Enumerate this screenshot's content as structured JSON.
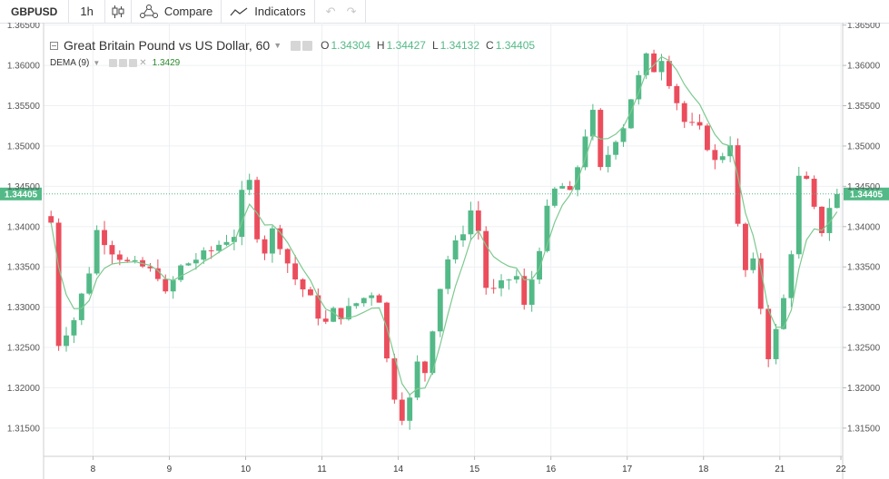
{
  "toolbar": {
    "symbol": "GBPUSD",
    "interval": "1h",
    "compare_label": "Compare",
    "indicators_label": "Indicators",
    "icons": [
      "candles-icon",
      "compare-icon",
      "indicators-icon",
      "undo-icon",
      "redo-icon"
    ]
  },
  "legend": {
    "title": "Great Britain Pound vs US Dollar, 60",
    "o_label": "O",
    "o": "1.34304",
    "h_label": "H",
    "h": "1.34427",
    "l_label": "L",
    "l": "1.34132",
    "c_label": "C",
    "c": "1.34405",
    "indicator": "DEMA (9)",
    "indicator_value": "1.3429"
  },
  "colors": {
    "up": "#53b987",
    "down": "#eb4d5c",
    "dema": "#7dc98f",
    "last": "#53b987"
  },
  "chart_data": {
    "type": "candlestick",
    "symbol": "GBPUSD",
    "interval": "60",
    "x_ticks": [
      "8",
      "9",
      "10",
      "11",
      "14",
      "15",
      "16",
      "17",
      "18",
      "21",
      "22"
    ],
    "y_ticks_left": [
      "1.36500",
      "1.36000",
      "1.35500",
      "1.35000",
      "1.34500",
      "1.34000",
      "1.33500",
      "1.33000",
      "1.32500",
      "1.32000",
      "1.31500"
    ],
    "y_ticks_right": [
      "1.36500",
      "1.36000",
      "1.35500",
      "1.35000",
      "1.34500",
      "1.34000",
      "1.33500",
      "1.33000",
      "1.32500",
      "1.32000",
      "1.31500"
    ],
    "ylim": [
      1.3115,
      1.3653
    ],
    "last_price": "1.34405",
    "last_price_value": 1.34405,
    "grid": true,
    "series": [
      {
        "name": "GBPUSD",
        "close_path": [
          [
            0,
            1.3405
          ],
          [
            1,
            1.3255
          ],
          [
            3,
            1.3285
          ],
          [
            5,
            1.3345
          ],
          [
            6,
            1.3395
          ],
          [
            8,
            1.337
          ],
          [
            10,
            1.3355
          ],
          [
            12,
            1.335
          ],
          [
            14,
            1.334
          ],
          [
            15,
            1.3315
          ],
          [
            17,
            1.335
          ],
          [
            19,
            1.336
          ],
          [
            21,
            1.337
          ],
          [
            22,
            1.3378
          ],
          [
            24,
            1.339
          ],
          [
            25,
            1.344
          ],
          [
            26,
            1.3455
          ],
          [
            27,
            1.339
          ],
          [
            28,
            1.337
          ],
          [
            29,
            1.3395
          ],
          [
            30,
            1.3378
          ],
          [
            31,
            1.3355
          ],
          [
            32,
            1.3335
          ],
          [
            34,
            1.331
          ],
          [
            35,
            1.329
          ],
          [
            36,
            1.328
          ],
          [
            37,
            1.3295
          ],
          [
            38,
            1.329
          ],
          [
            40,
            1.3305
          ],
          [
            42,
            1.3318
          ],
          [
            43,
            1.331
          ],
          [
            44,
            1.3235
          ],
          [
            45,
            1.319
          ],
          [
            46,
            1.3165
          ],
          [
            47,
            1.3185
          ],
          [
            48,
            1.323
          ],
          [
            49,
            1.322
          ],
          [
            50,
            1.3275
          ],
          [
            51,
            1.3325
          ],
          [
            52,
            1.336
          ],
          [
            53,
            1.3378
          ],
          [
            54,
            1.3395
          ],
          [
            55,
            1.342
          ],
          [
            56,
            1.3395
          ],
          [
            57,
            1.3325
          ],
          [
            58,
            1.332
          ],
          [
            60,
            1.3335
          ],
          [
            61,
            1.3338
          ],
          [
            62,
            1.33
          ],
          [
            63,
            1.3335
          ],
          [
            64,
            1.3375
          ],
          [
            65,
            1.342
          ],
          [
            66,
            1.3445
          ],
          [
            67,
            1.345
          ],
          [
            68,
            1.344
          ],
          [
            69,
            1.3475
          ],
          [
            70,
            1.3515
          ],
          [
            71,
            1.354
          ],
          [
            72,
            1.347
          ],
          [
            73,
            1.349
          ],
          [
            74,
            1.351
          ],
          [
            75,
            1.3525
          ],
          [
            76,
            1.356
          ],
          [
            77,
            1.3585
          ],
          [
            78,
            1.361
          ],
          [
            79,
            1.3595
          ],
          [
            80,
            1.361
          ],
          [
            81,
            1.358
          ],
          [
            82,
            1.3555
          ],
          [
            83,
            1.353
          ],
          [
            84,
            1.3525
          ],
          [
            85,
            1.352
          ],
          [
            86,
            1.35
          ],
          [
            87,
            1.348
          ],
          [
            88,
            1.349
          ],
          [
            89,
            1.3505
          ],
          [
            90,
            1.34
          ],
          [
            91,
            1.3345
          ],
          [
            92,
            1.3355
          ],
          [
            93,
            1.33
          ],
          [
            94,
            1.324
          ],
          [
            95,
            1.327
          ],
          [
            96,
            1.331
          ],
          [
            97,
            1.337
          ],
          [
            98,
            1.346
          ],
          [
            99,
            1.3455
          ],
          [
            100,
            1.342
          ],
          [
            101,
            1.3395
          ],
          [
            102,
            1.3425
          ],
          [
            103,
            1.34405
          ]
        ],
        "bars": 104,
        "x_tick_bar_index": [
          6,
          16,
          26,
          36,
          46,
          56,
          66,
          76,
          86,
          96,
          104
        ]
      }
    ]
  }
}
